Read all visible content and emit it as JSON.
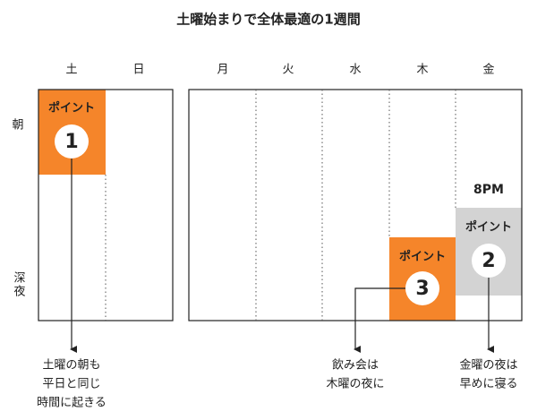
{
  "title": "土曜始まりで全体最適の1週間",
  "days": [
    "土",
    "日",
    "月",
    "火",
    "水",
    "木",
    "金"
  ],
  "rows": [
    "朝",
    "深夜"
  ],
  "points": [
    {
      "label": "ポイント",
      "number": 1,
      "caption": [
        "土曜の朝も",
        "平日と同じ",
        "時間に起きる"
      ]
    },
    {
      "label": "ポイント",
      "number": 2,
      "time": "8PM",
      "caption": [
        "金曜の夜は",
        "早めに寝る"
      ]
    },
    {
      "label": "ポイント",
      "number": 3,
      "caption": [
        "飲み会は",
        "木曜の夜に"
      ]
    }
  ]
}
